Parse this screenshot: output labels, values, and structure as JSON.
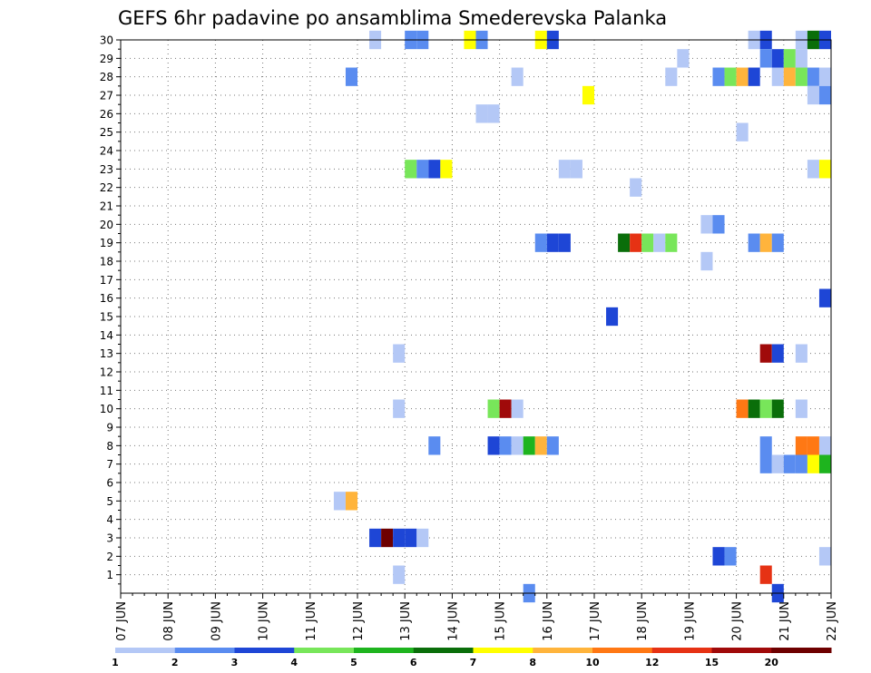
{
  "chart_data": {
    "type": "heatmap",
    "title": "GEFS 6hr padavine po ansamblima Smederevska Palanka",
    "x_ticks": [
      "07 JUN",
      "08 JUN",
      "09 JUN",
      "10 JUN",
      "11 JUN",
      "12 JUN",
      "13 JUN",
      "14 JUN",
      "15 JUN",
      "16 JUN",
      "17 JUN",
      "18 JUN",
      "19 JUN",
      "20 JUN",
      "21 JUN",
      "22 JUN"
    ],
    "y_ticks": [
      1,
      2,
      3,
      4,
      5,
      6,
      7,
      8,
      9,
      10,
      11,
      12,
      13,
      14,
      15,
      16,
      17,
      18,
      19,
      20,
      21,
      22,
      23,
      24,
      25,
      26,
      27,
      28,
      29,
      30
    ],
    "xlim": [
      "07 JUN",
      "22 JUN"
    ],
    "ylim": [
      0,
      30
    ],
    "time_step_hours": 6,
    "grid": true,
    "legend_position": "bottom",
    "legend": {
      "colors": [
        "#b4c8f6",
        "#5a8cf0",
        "#1e46d6",
        "#78e65a",
        "#1eb41e",
        "#0a6e0a",
        "#ffff00",
        "#ffb43c",
        "#ff7814",
        "#e63214",
        "#a00a0a",
        "#6e0000"
      ],
      "labels": [
        "1",
        "2",
        "3",
        "4",
        "5",
        "6",
        "7",
        "8",
        "10",
        "12",
        "15",
        "20"
      ]
    },
    "cells": [
      [
        "12 JUN 06",
        30,
        1
      ],
      [
        "13 JUN 00",
        30,
        2
      ],
      [
        "13 JUN 06",
        30,
        2
      ],
      [
        "14 JUN 06",
        30,
        7
      ],
      [
        "14 JUN 12",
        30,
        2
      ],
      [
        "15 JUN 18",
        30,
        7
      ],
      [
        "16 JUN 00",
        30,
        3
      ],
      [
        "20 JUN 06",
        30,
        1
      ],
      [
        "20 JUN 12",
        30,
        3
      ],
      [
        "21 JUN 06",
        30,
        1
      ],
      [
        "21 JUN 12",
        30,
        6
      ],
      [
        "21 JUN 18",
        30,
        3
      ],
      [
        "18 JUN 18",
        29,
        1
      ],
      [
        "20 JUN 12",
        29,
        2
      ],
      [
        "20 JUN 18",
        29,
        3
      ],
      [
        "21 JUN 00",
        29,
        4
      ],
      [
        "21 JUN 06",
        29,
        1
      ],
      [
        "11 JUN 18",
        28,
        2
      ],
      [
        "15 JUN 06",
        28,
        1
      ],
      [
        "18 JUN 12",
        28,
        1
      ],
      [
        "19 JUN 12",
        28,
        2
      ],
      [
        "19 JUN 18",
        28,
        4
      ],
      [
        "20 JUN 00",
        28,
        8
      ],
      [
        "20 JUN 06",
        28,
        3
      ],
      [
        "20 JUN 18",
        28,
        1
      ],
      [
        "21 JUN 00",
        28,
        8
      ],
      [
        "21 JUN 06",
        28,
        4
      ],
      [
        "21 JUN 12",
        28,
        2
      ],
      [
        "21 JUN 18",
        28,
        1
      ],
      [
        "16 JUN 18",
        27,
        7
      ],
      [
        "21 JUN 12",
        27,
        1
      ],
      [
        "21 JUN 18",
        27,
        2
      ],
      [
        "14 JUN 12",
        26,
        1
      ],
      [
        "14 JUN 18",
        26,
        1
      ],
      [
        "20 JUN 00",
        25,
        1
      ],
      [
        "13 JUN 00",
        23,
        4
      ],
      [
        "13 JUN 06",
        23,
        2
      ],
      [
        "13 JUN 12",
        23,
        3
      ],
      [
        "13 JUN 18",
        23,
        7
      ],
      [
        "16 JUN 06",
        23,
        1
      ],
      [
        "16 JUN 12",
        23,
        1
      ],
      [
        "21 JUN 12",
        23,
        1
      ],
      [
        "21 JUN 18",
        23,
        7
      ],
      [
        "17 JUN 18",
        22,
        1
      ],
      [
        "19 JUN 06",
        20,
        1
      ],
      [
        "19 JUN 12",
        20,
        2
      ],
      [
        "15 JUN 18",
        19,
        2
      ],
      [
        "16 JUN 00",
        19,
        3
      ],
      [
        "16 JUN 06",
        19,
        3
      ],
      [
        "17 JUN 12",
        19,
        6
      ],
      [
        "17 JUN 18",
        19,
        10
      ],
      [
        "18 JUN 00",
        19,
        4
      ],
      [
        "18 JUN 06",
        19,
        1
      ],
      [
        "18 JUN 12",
        19,
        4
      ],
      [
        "20 JUN 06",
        19,
        2
      ],
      [
        "20 JUN 12",
        19,
        8
      ],
      [
        "20 JUN 18",
        19,
        2
      ],
      [
        "19 JUN 06",
        18,
        1
      ],
      [
        "21 JUN 18",
        16,
        3
      ],
      [
        "17 JUN 06",
        15,
        3
      ],
      [
        "12 JUN 18",
        13,
        1
      ],
      [
        "20 JUN 12",
        13,
        11
      ],
      [
        "20 JUN 18",
        13,
        3
      ],
      [
        "21 JUN 06",
        13,
        1
      ],
      [
        "12 JUN 18",
        10,
        1
      ],
      [
        "14 JUN 18",
        10,
        4
      ],
      [
        "15 JUN 00",
        10,
        11
      ],
      [
        "15 JUN 06",
        10,
        1
      ],
      [
        "20 JUN 00",
        10,
        9
      ],
      [
        "20 JUN 06",
        10,
        6
      ],
      [
        "20 JUN 12",
        10,
        4
      ],
      [
        "20 JUN 18",
        10,
        6
      ],
      [
        "21 JUN 06",
        10,
        1
      ],
      [
        "13 JUN 12",
        8,
        2
      ],
      [
        "14 JUN 18",
        8,
        3
      ],
      [
        "15 JUN 00",
        8,
        2
      ],
      [
        "15 JUN 06",
        8,
        1
      ],
      [
        "15 JUN 12",
        8,
        5
      ],
      [
        "15 JUN 18",
        8,
        8
      ],
      [
        "16 JUN 00",
        8,
        2
      ],
      [
        "20 JUN 12",
        8,
        2
      ],
      [
        "21 JUN 06",
        8,
        9
      ],
      [
        "21 JUN 12",
        8,
        9
      ],
      [
        "21 JUN 18",
        8,
        1
      ],
      [
        "20 JUN 12",
        7,
        2
      ],
      [
        "20 JUN 18",
        7,
        1
      ],
      [
        "21 JUN 00",
        7,
        2
      ],
      [
        "21 JUN 06",
        7,
        2
      ],
      [
        "21 JUN 12",
        7,
        7
      ],
      [
        "21 JUN 18",
        7,
        5
      ],
      [
        "11 JUN 12",
        5,
        1
      ],
      [
        "11 JUN 18",
        5,
        8
      ],
      [
        "12 JUN 06",
        3,
        3
      ],
      [
        "12 JUN 12",
        3,
        12
      ],
      [
        "12 JUN 18",
        3,
        3
      ],
      [
        "13 JUN 00",
        3,
        3
      ],
      [
        "13 JUN 06",
        3,
        1
      ],
      [
        "19 JUN 12",
        2,
        3
      ],
      [
        "19 JUN 18",
        2,
        2
      ],
      [
        "21 JUN 18",
        2,
        1
      ],
      [
        "12 JUN 18",
        1,
        1
      ],
      [
        "20 JUN 12",
        1,
        10
      ],
      [
        "15 JUN 12",
        0,
        2
      ],
      [
        "20 JUN 18",
        0,
        3
      ]
    ]
  }
}
